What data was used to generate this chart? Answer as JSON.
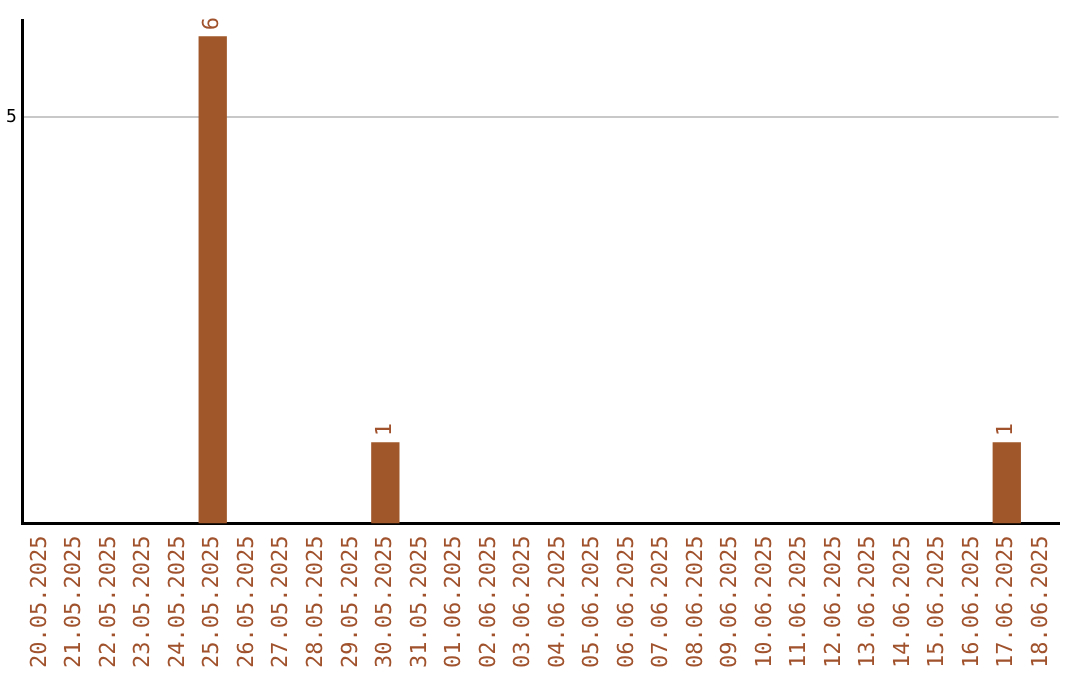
{
  "chart_data": {
    "type": "bar",
    "categories": [
      "20.05.2025",
      "21.05.2025",
      "22.05.2025",
      "23.05.2025",
      "24.05.2025",
      "25.05.2025",
      "26.05.2025",
      "27.05.2025",
      "28.05.2025",
      "29.05.2025",
      "30.05.2025",
      "31.05.2025",
      "01.06.2025",
      "02.06.2025",
      "03.06.2025",
      "04.06.2025",
      "05.06.2025",
      "06.06.2025",
      "07.06.2025",
      "08.06.2025",
      "09.06.2025",
      "10.06.2025",
      "11.06.2025",
      "12.06.2025",
      "13.06.2025",
      "14.06.2025",
      "15.06.2025",
      "16.06.2025",
      "17.06.2025",
      "18.06.2025"
    ],
    "values": [
      0,
      0,
      0,
      0,
      0,
      6,
      0,
      0,
      0,
      0,
      1,
      0,
      0,
      0,
      0,
      0,
      0,
      0,
      0,
      0,
      0,
      0,
      0,
      0,
      0,
      0,
      0,
      0,
      1,
      0
    ],
    "value_labels": [
      null,
      null,
      null,
      null,
      null,
      "6",
      null,
      null,
      null,
      null,
      "1",
      null,
      null,
      null,
      null,
      null,
      null,
      null,
      null,
      null,
      null,
      null,
      null,
      null,
      null,
      null,
      null,
      null,
      "1",
      null
    ],
    "color": "#a0582a",
    "ylim": [
      0,
      6.2
    ],
    "yticks": [
      5
    ],
    "grid": "y",
    "legend": false
  }
}
